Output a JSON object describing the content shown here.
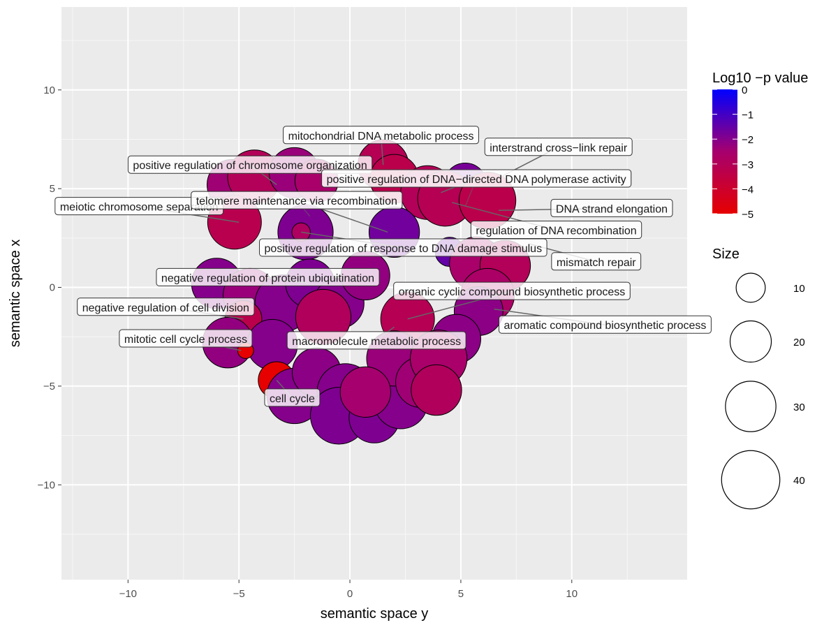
{
  "chart_data": {
    "type": "scatter",
    "title": "",
    "xlabel": "semantic space y",
    "ylabel": "semantic space x",
    "xlim": [
      -13,
      15.2
    ],
    "ylim": [
      -14.8,
      14.2
    ],
    "xticks": [
      -10,
      -5,
      0,
      5,
      10
    ],
    "yticks": [
      -10,
      -5,
      0,
      5,
      10
    ],
    "x_tick_labels": [
      "−10",
      "−5",
      "0",
      "5",
      "10"
    ],
    "y_tick_labels": [
      "−10",
      "−5",
      "0",
      "5",
      "10"
    ],
    "grid": true,
    "legend_position": "right",
    "color_legend": {
      "title": "Log10 −p value",
      "min": -5,
      "max": 0,
      "ticks": [
        0,
        -1,
        -2,
        -3,
        -4,
        -5
      ],
      "tick_labels": [
        "0",
        "−1",
        "−2",
        "−3",
        "−4",
        "−5"
      ],
      "low_color": "#e60000",
      "high_color": "#0000ff"
    },
    "size_legend": {
      "title": "Size",
      "values": [
        10,
        20,
        30,
        40
      ],
      "labels": [
        "10",
        "20",
        "30",
        "40"
      ]
    },
    "points": [
      {
        "x": -5.3,
        "y": 5.2,
        "size": 30,
        "logp": -2.4
      },
      {
        "x": -4.3,
        "y": 5.6,
        "size": 34,
        "logp": -3.0
      },
      {
        "x": -2.5,
        "y": 5.8,
        "size": 30,
        "logp": -2.3
      },
      {
        "x": -1.5,
        "y": 5.4,
        "size": 22,
        "logp": -2.6
      },
      {
        "x": -5.2,
        "y": 3.3,
        "size": 34,
        "logp": -3.2
      },
      {
        "x": -2.0,
        "y": 2.8,
        "size": 36,
        "logp": -1.9
      },
      {
        "x": -2.2,
        "y": 2.8,
        "size": 4,
        "logp": -2.8
      },
      {
        "x": 1.5,
        "y": 6.2,
        "size": 30,
        "logp": -3.1
      },
      {
        "x": 2.0,
        "y": 5.5,
        "size": 28,
        "logp": -3.3
      },
      {
        "x": 3.5,
        "y": 4.8,
        "size": 34,
        "logp": -3.0
      },
      {
        "x": 5.2,
        "y": 5.2,
        "size": 22,
        "logp": -1.8
      },
      {
        "x": 4.3,
        "y": 4.5,
        "size": 36,
        "logp": -3.1
      },
      {
        "x": 6.2,
        "y": 4.4,
        "size": 38,
        "logp": -3.3
      },
      {
        "x": 2.0,
        "y": 2.8,
        "size": 30,
        "logp": -1.7
      },
      {
        "x": 4.5,
        "y": 1.8,
        "size": 10,
        "logp": -1.5
      },
      {
        "x": 5.7,
        "y": 1.2,
        "size": 34,
        "logp": -2.6
      },
      {
        "x": 7.0,
        "y": 1.1,
        "size": 30,
        "logp": -3.0
      },
      {
        "x": 6.2,
        "y": -0.4,
        "size": 34,
        "logp": -2.7
      },
      {
        "x": 5.8,
        "y": -1.2,
        "size": 28,
        "logp": -2.1
      },
      {
        "x": 4.8,
        "y": -2.6,
        "size": 28,
        "logp": -2.1
      },
      {
        "x": -6.0,
        "y": 0.2,
        "size": 30,
        "logp": -2.0
      },
      {
        "x": -4.5,
        "y": -0.4,
        "size": 34,
        "logp": -2.3
      },
      {
        "x": -3.0,
        "y": -0.8,
        "size": 38,
        "logp": -2.0
      },
      {
        "x": -1.8,
        "y": 0.2,
        "size": 28,
        "logp": -1.9
      },
      {
        "x": -0.5,
        "y": -0.8,
        "size": 30,
        "logp": -2.0
      },
      {
        "x": -1.2,
        "y": -1.5,
        "size": 36,
        "logp": -2.9
      },
      {
        "x": 0.7,
        "y": 0.6,
        "size": 28,
        "logp": -2.2
      },
      {
        "x": 2.6,
        "y": -1.6,
        "size": 34,
        "logp": -3.1
      },
      {
        "x": -4.8,
        "y": -1.6,
        "size": 16,
        "logp": -3.3
      },
      {
        "x": -5.5,
        "y": -2.8,
        "size": 30,
        "logp": -2.2
      },
      {
        "x": -3.5,
        "y": -2.9,
        "size": 30,
        "logp": -2.0
      },
      {
        "x": -4.7,
        "y": -3.2,
        "size": 3,
        "logp": -5.0
      },
      {
        "x": -3.3,
        "y": -4.7,
        "size": 16,
        "logp": -5.0
      },
      {
        "x": -2.5,
        "y": -5.5,
        "size": 36,
        "logp": -2.0
      },
      {
        "x": -1.5,
        "y": -4.3,
        "size": 28,
        "logp": -2.1
      },
      {
        "x": -0.2,
        "y": -5.3,
        "size": 38,
        "logp": -2.0
      },
      {
        "x": -0.5,
        "y": -6.5,
        "size": 38,
        "logp": -1.9
      },
      {
        "x": 1.1,
        "y": -6.6,
        "size": 30,
        "logp": -1.9
      },
      {
        "x": 2.3,
        "y": -5.8,
        "size": 34,
        "logp": -2.0
      },
      {
        "x": 2.0,
        "y": -3.6,
        "size": 36,
        "logp": -2.3
      },
      {
        "x": 3.2,
        "y": -4.8,
        "size": 30,
        "logp": -2.4
      },
      {
        "x": 4.0,
        "y": -3.6,
        "size": 38,
        "logp": -2.6
      },
      {
        "x": 3.9,
        "y": -5.2,
        "size": 30,
        "logp": -2.9
      },
      {
        "x": 0.7,
        "y": -5.3,
        "size": 30,
        "logp": -2.5
      }
    ],
    "labels": [
      {
        "text": "mitochondrial DNA metabolic process",
        "x": 1.4,
        "y": 7.7,
        "px": 1.5,
        "py": 6.2,
        "faded": false
      },
      {
        "text": "interstrand cross−link repair",
        "x": 9.4,
        "y": 7.1,
        "px": 6.8,
        "py": 5.6,
        "faded": false
      },
      {
        "text": "positive regulation of chromosome organization",
        "x": -4.5,
        "y": 6.2,
        "px": -3.3,
        "py": 5.2,
        "faded": false
      },
      {
        "text": "positive regulation of DNA−directed DNA polymerase activity",
        "x": 5.7,
        "y": 5.5,
        "px": 4.1,
        "py": 4.8,
        "faded": false
      },
      {
        "text": "telomere maintenance via recombination",
        "x": -2.4,
        "y": 4.4,
        "px": -1.8,
        "py": 3.6,
        "faded": true
      },
      {
        "text": "positive regulation of DNA−directed DNA polymerase activity",
        "x": 5.7,
        "y": 5.5,
        "px": 5.2,
        "py": 4.1,
        "faded": true
      },
      {
        "text": "meiotic chromosome separation",
        "x": -9.5,
        "y": 4.1,
        "px": -5.0,
        "py": 3.3,
        "faded": false
      },
      {
        "text": "telomere maintenance via recombination",
        "x": -2.4,
        "y": 4.4,
        "px": 1.7,
        "py": 2.8,
        "faded": false
      },
      {
        "text": "DNA strand elongation",
        "x": 11.8,
        "y": 4.0,
        "px": 6.7,
        "py": 3.9,
        "faded": false
      },
      {
        "text": "regulation of DNA recombination",
        "x": 9.3,
        "y": 2.9,
        "px": 4.6,
        "py": 4.3,
        "faded": false
      },
      {
        "text": "positive regulation of response to DNA damage stimulus",
        "x": 2.4,
        "y": 2.0,
        "px": -2.2,
        "py": 2.8,
        "faded": false
      },
      {
        "text": "mismatch repair",
        "x": 11.1,
        "y": 1.3,
        "px": 8.1,
        "py": 2.2,
        "faded": false
      },
      {
        "text": "negative regulation of protein ubiquitination",
        "x": -3.7,
        "y": 0.5,
        "px": -1.8,
        "py": 0.2,
        "faded": false
      },
      {
        "text": "organic cyclic compound biosynthetic process",
        "x": 7.3,
        "y": -0.2,
        "px": 2.6,
        "py": -1.6,
        "faded": false
      },
      {
        "text": "negative regulation of cell division",
        "x": -8.3,
        "y": -1.0,
        "px": -4.8,
        "py": -1.6,
        "faded": false
      },
      {
        "text": "aromatic compound biosynthetic process",
        "x": 11.5,
        "y": -1.9,
        "px": 6.5,
        "py": -1.1,
        "faded": false
      },
      {
        "text": "mitotic cell cycle process",
        "x": -7.4,
        "y": -2.6,
        "px": -4.9,
        "py": -3.2,
        "faded": false
      },
      {
        "text": "macromolecule metabolic process",
        "x": 1.2,
        "y": -2.7,
        "px": 2.0,
        "py": -2.0,
        "faded": false
      },
      {
        "text": "cell cycle",
        "x": -2.6,
        "y": -5.6,
        "px": -3.3,
        "py": -4.7,
        "faded": false
      }
    ]
  }
}
